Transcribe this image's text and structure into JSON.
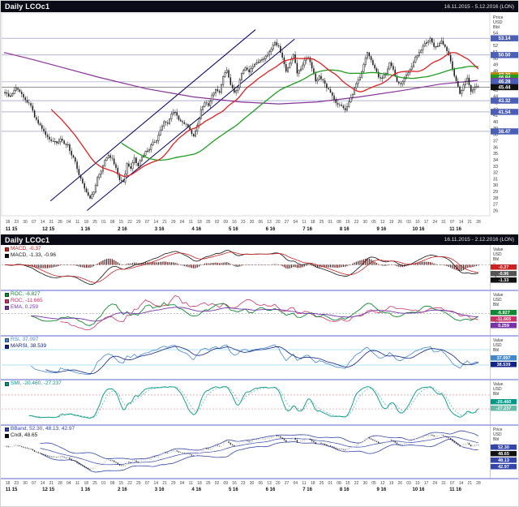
{
  "top_chart": {
    "title": "Daily LCOc1",
    "date_range": "16.11.2015 - 5.12.2016 (LON)",
    "axis_unit": [
      "Price",
      "USD",
      "Bbl"
    ],
    "y_axis": {
      "min": 25.3,
      "max": 57.0,
      "tick_start": 26,
      "tick_end": 54,
      "tick_step": 1
    },
    "h_lines": [
      53.14,
      50.5,
      46.28,
      43.32,
      41.54,
      38.47
    ],
    "current_price": 45.44,
    "price_labels": [
      {
        "value": 53.14,
        "label": "53.14",
        "color": "#4a5fb5"
      },
      {
        "value": 50.5,
        "label": "50.50",
        "color": "#4a5fb5"
      },
      {
        "value": 47.3,
        "label": "47.30",
        "color": "#b8860b"
      },
      {
        "value": 46.94,
        "label": "46.94",
        "color": "#1f9d1f"
      },
      {
        "value": 46.43,
        "label": "46.43",
        "color": "#883399"
      },
      {
        "value": 46.28,
        "label": "46.28",
        "color": "#4a5fb5"
      },
      {
        "value": 45.44,
        "label": "45.44",
        "color": "#111111"
      },
      {
        "value": 43.32,
        "label": "43.32",
        "color": "#4a5fb5"
      },
      {
        "value": 41.54,
        "label": "41.54",
        "color": "#4a5fb5"
      },
      {
        "value": 38.47,
        "label": "38.47",
        "color": "#4a5fb5"
      }
    ],
    "trend_lines": [
      {
        "x1": 0.1,
        "p1": 27.5,
        "x2": 0.52,
        "p2": 54.5
      },
      {
        "x1": 0.175,
        "p1": 26.0,
        "x2": 0.6,
        "p2": 53.0
      }
    ],
    "ma": {
      "red_period": 26,
      "green_period": 64,
      "red_color": "#dd2222",
      "green_color": "#1f9d1f",
      "purple_color": "#883399"
    },
    "purple_ma_points": [
      [
        0,
        50.9
      ],
      [
        0.06,
        49.8
      ],
      [
        0.12,
        48.6
      ],
      [
        0.2,
        47.0
      ],
      [
        0.3,
        45.2
      ],
      [
        0.4,
        43.9
      ],
      [
        0.5,
        43.1
      ],
      [
        0.58,
        42.8
      ],
      [
        0.66,
        43.1
      ],
      [
        0.75,
        43.9
      ],
      [
        0.84,
        44.9
      ],
      [
        0.92,
        45.9
      ],
      [
        1,
        46.5
      ]
    ],
    "colors": {
      "candle": "#161616",
      "trend_line": "#000066",
      "h_line": "#8888bb"
    }
  },
  "bottom_chart": {
    "title": "Daily LCOc1",
    "date_range": "16.11.2015 - 2.12.2016 (LON)",
    "panels": [
      {
        "id": "macd",
        "indicator": "MACD",
        "legends": [
          {
            "color": "#cc2222",
            "text": "MACD, -0.37"
          },
          {
            "color": "#111111",
            "text": "MACD, -1.33, -0.96"
          }
        ],
        "boxes": [
          {
            "text": "-0.37",
            "color": "#cc2222"
          },
          {
            "text": "-0.96",
            "color": "#555555"
          },
          {
            "text": "-1.33",
            "color": "#111111"
          }
        ],
        "ticks": [
          2,
          0,
          -2
        ],
        "guides": [
          0
        ],
        "axis_unit": [
          "Value",
          "USD",
          "Bbl"
        ]
      },
      {
        "id": "roc",
        "indicator": "ROC",
        "legends": [
          {
            "color": "#118833",
            "text": "ROC, -6.827"
          },
          {
            "color": "#cc3366",
            "text": "ROC, -11.665"
          },
          {
            "color": "#7733aa",
            "text": "EMA, 0.259"
          }
        ],
        "boxes": [
          {
            "text": "-6.827",
            "color": "#118833"
          },
          {
            "text": "-11.665",
            "color": "#cc3366"
          },
          {
            "text": "0.259",
            "color": "#7733aa"
          }
        ],
        "ticks": [
          40,
          20,
          0,
          -20
        ],
        "guides": [
          0
        ],
        "axis_unit": [
          "Value",
          "USD",
          "Bbl"
        ]
      },
      {
        "id": "rsi",
        "indicator": "RSI",
        "legends": [
          {
            "color": "#4488cc",
            "text": "RSI, 37.097"
          },
          {
            "color": "#112288",
            "text": "MARSI, 38.539"
          }
        ],
        "boxes": [
          {
            "text": "37.097",
            "color": "#4488cc"
          },
          {
            "text": "38.539",
            "color": "#112288"
          }
        ],
        "ticks": [
          70,
          50,
          30
        ],
        "guides": [
          70,
          30
        ],
        "axis_unit": [
          "Value",
          "USD",
          "Bbl"
        ]
      },
      {
        "id": "smi",
        "indicator": "SMI",
        "legends": [
          {
            "color": "#009988",
            "text": "SMI, -20.460, -27.237"
          }
        ],
        "boxes": [
          {
            "text": "-20.460",
            "color": "#009988"
          },
          {
            "text": "-27.237",
            "color": "#66bbaa"
          }
        ],
        "ticks": [
          40,
          0,
          -40
        ],
        "guides": [
          40,
          -40
        ],
        "axis_unit": [
          "Value",
          "USD",
          "Bbl"
        ]
      },
      {
        "id": "bband",
        "indicator": "BBand",
        "legends": [
          {
            "color": "#3344aa",
            "text": "BBand, 52.30, 48.13, 42.97"
          },
          {
            "color": "#111111",
            "text": "Cndl, 48.65"
          }
        ],
        "boxes": [
          {
            "text": "52.30",
            "color": "#3344aa"
          },
          {
            "text": "48.65",
            "color": "#111111"
          },
          {
            "text": "48.13",
            "color": "#3344aa"
          },
          {
            "text": "42.97",
            "color": "#3344aa"
          }
        ],
        "ticks": [
          55,
          50,
          45,
          40,
          35,
          30
        ],
        "guides": [],
        "axis_unit": [
          "Price",
          "USD",
          "Bbl"
        ]
      }
    ]
  },
  "x_axis": {
    "day_ticks": [
      "18",
      "23",
      "30",
      "07",
      "14",
      "21",
      "28",
      "04",
      "11",
      "18",
      "25",
      "01",
      "08",
      "15",
      "22",
      "29",
      "07",
      "14",
      "21",
      "29",
      "04",
      "11",
      "18",
      "25",
      "02",
      "09",
      "16",
      "23",
      "30",
      "06",
      "13",
      "20",
      "27",
      "04",
      "11",
      "18",
      "25",
      "01",
      "08",
      "15",
      "22",
      "30",
      "05",
      "12",
      "19",
      "26",
      "03",
      "10",
      "17",
      "24",
      "31",
      "07",
      "14",
      "21",
      "28"
    ],
    "month_ticks": [
      "11 15",
      "12 15",
      "1 16",
      "2 16",
      "3 16",
      "4 16",
      "5 16",
      "6 16",
      "7 16",
      "8 16",
      "9 16",
      "10 16",
      "11 16"
    ]
  },
  "chart_data": {
    "type": "candlestick",
    "symbol": "LCOc1",
    "interval": "Daily",
    "title": "Daily LCOc1",
    "price_unit": "USD/Bbl",
    "y_range": [
      26,
      54
    ],
    "x_range": "16.11.2015 - 5.12.2016",
    "indicators": [
      "MACD",
      "ROC",
      "RSI",
      "SMI",
      "BBand"
    ],
    "closes": [
      44.6,
      44.0,
      44.4,
      45.3,
      44.7,
      43.8,
      43.0,
      42.5,
      40.7,
      39.7,
      38.9,
      37.9,
      37.2,
      36.9,
      36.6,
      37.3,
      36.5,
      36.4,
      34.7,
      33.7,
      31.6,
      30.3,
      28.9,
      27.9,
      28.9,
      31.2,
      32.2,
      33.9,
      34.7,
      34.2,
      32.7,
      30.8,
      30.5,
      33.4,
      32.6,
      34.3,
      33.0,
      34.4,
      35.3,
      35.6,
      36.8,
      37.0,
      38.7,
      40.0,
      39.7,
      41.2,
      41.5,
      40.3,
      39.9,
      39.6,
      38.7,
      37.7,
      39.4,
      41.9,
      43.0,
      42.5,
      44.2,
      45.1,
      44.6,
      47.1,
      48.1,
      45.8,
      44.6,
      45.4,
      47.6,
      48.5,
      47.8,
      48.7,
      49.3,
      49.7,
      49.9,
      50.5,
      51.4,
      52.5,
      51.9,
      50.1,
      47.9,
      49.2,
      50.6,
      47.6,
      48.3,
      49.7,
      50.1,
      48.4,
      46.4,
      47.2,
      46.5,
      45.3,
      44.6,
      43.5,
      42.7,
      42.5,
      41.8,
      43.1,
      44.3,
      46.0,
      47.0,
      49.0,
      50.9,
      49.7,
      48.4,
      47.0,
      46.9,
      47.6,
      49.3,
      48.2,
      46.3,
      45.9,
      46.8,
      47.7,
      48.7,
      50.2,
      50.9,
      51.9,
      52.5,
      53.1,
      51.8,
      51.9,
      52.7,
      51.8,
      50.5,
      48.3,
      46.4,
      44.4,
      45.8,
      46.9,
      44.7,
      45.4,
      45.44
    ]
  }
}
